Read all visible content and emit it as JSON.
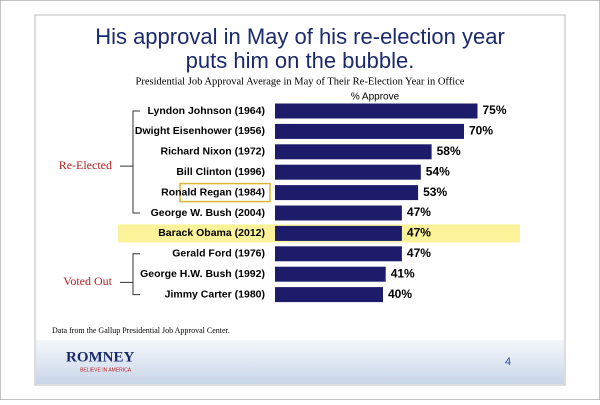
{
  "chart_data": {
    "type": "bar",
    "orientation": "horizontal",
    "title": "His approval in May of his re-election year puts him on the bubble.",
    "subtitle": "Presidential Job Approval Average in May of Their Re-Election Year in Office",
    "xlabel": "% Approve",
    "categories": [
      "Lyndon Johnson (1964)",
      "Dwight Eisenhower (1956)",
      "Richard Nixon (1972)",
      "Bill Clinton (1996)",
      "Ronald Regan (1984)",
      "George W. Bush (2004)",
      "Barack Obama (2012)",
      "Gerald Ford (1976)",
      "George H.W. Bush (1992)",
      "Jimmy Carter (1980)"
    ],
    "values": [
      75,
      70,
      58,
      54,
      53,
      47,
      47,
      47,
      41,
      40
    ],
    "value_labels": [
      "75%",
      "70%",
      "58%",
      "54%",
      "53%",
      "47%",
      "47%",
      "47%",
      "41%",
      "40%"
    ],
    "color": "#1c1c6b",
    "xlim": [
      0,
      100
    ],
    "annotations": [
      "Re-Elected",
      "Voted Out"
    ],
    "source": "Data from the Gallup Presidential Job Approval Center.",
    "logo": "ROMNEY",
    "logo_tagline": "BELIEVE IN AMERICA",
    "page_number": "4"
  }
}
